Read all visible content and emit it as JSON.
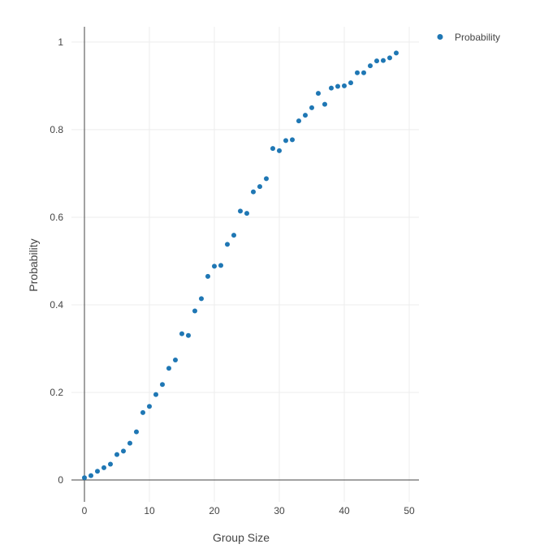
{
  "chart_data": {
    "type": "scatter",
    "xlabel": "Group Size",
    "ylabel": "Probability",
    "xlim": [
      -2,
      51.5
    ],
    "ylim": [
      -0.05,
      1.035
    ],
    "x_ticks": [
      0,
      10,
      20,
      30,
      40,
      50
    ],
    "y_ticks": [
      0,
      0.2,
      0.4,
      0.6,
      0.8,
      1
    ],
    "grid": true,
    "legend_position": "top-right",
    "series": [
      {
        "name": "Probability",
        "color": "#1f77b4",
        "x": [
          0,
          1,
          2,
          3,
          4,
          5,
          6,
          7,
          8,
          9,
          10,
          11,
          12,
          13,
          14,
          15,
          16,
          17,
          18,
          19,
          20,
          21,
          22,
          23,
          24,
          25,
          26,
          27,
          28,
          29,
          30,
          31,
          32,
          33,
          34,
          35,
          36,
          37,
          38,
          39,
          40,
          41,
          42,
          43,
          44,
          45,
          46,
          47,
          48
        ],
        "y": [
          0.005,
          0.01,
          0.02,
          0.028,
          0.036,
          0.058,
          0.066,
          0.084,
          0.11,
          0.154,
          0.168,
          0.195,
          0.218,
          0.255,
          0.274,
          0.334,
          0.33,
          0.386,
          0.414,
          0.465,
          0.488,
          0.49,
          0.538,
          0.559,
          0.614,
          0.609,
          0.658,
          0.67,
          0.688,
          0.757,
          0.752,
          0.775,
          0.777,
          0.82,
          0.833,
          0.85,
          0.883,
          0.858,
          0.895,
          0.899,
          0.9,
          0.907,
          0.93,
          0.93,
          0.946,
          0.957,
          0.958,
          0.964,
          0.975
        ]
      }
    ]
  }
}
